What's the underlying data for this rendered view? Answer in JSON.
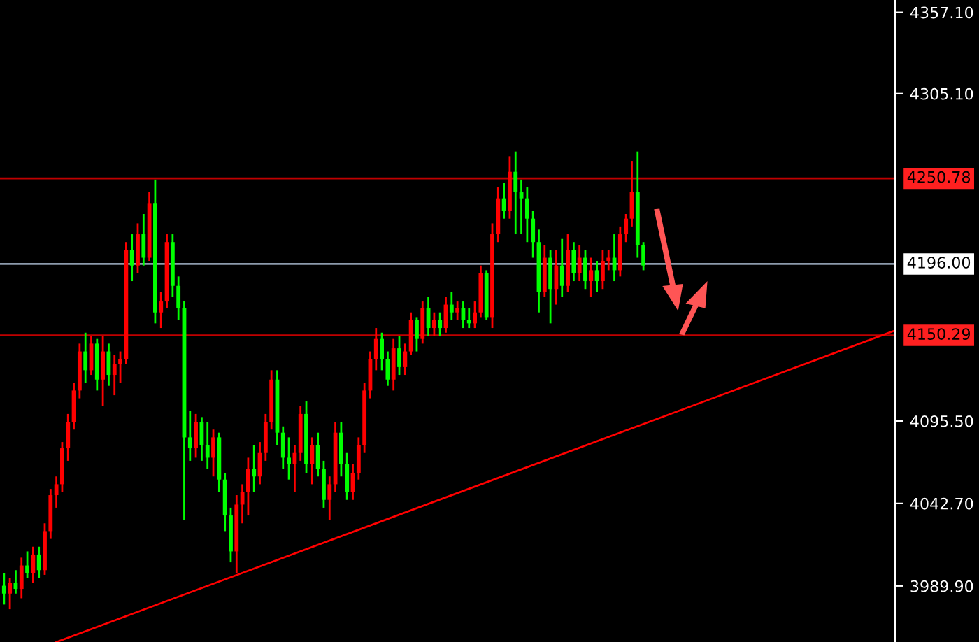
{
  "chart_data": {
    "type": "candlestick",
    "categories": [
      null,
      null,
      null,
      null,
      null,
      null,
      null,
      null,
      null,
      null,
      null,
      null,
      null,
      null,
      null,
      null,
      null,
      null,
      null,
      null,
      null,
      null,
      null,
      null,
      null,
      null,
      null,
      null,
      null,
      null,
      null,
      null,
      null,
      null,
      null,
      null,
      null,
      null,
      null,
      null,
      null,
      null,
      null,
      null,
      null,
      null,
      null,
      null,
      null,
      null,
      null,
      null,
      null,
      null,
      null,
      null,
      null,
      null,
      null,
      null,
      null,
      null,
      null,
      null,
      null,
      null,
      null,
      null,
      null,
      null,
      null,
      null,
      null,
      null,
      null,
      null,
      null,
      null,
      null,
      null,
      null,
      null,
      null,
      null,
      null,
      null,
      null,
      null,
      null,
      null,
      null,
      null,
      null,
      null,
      null,
      null,
      null,
      null,
      null,
      null,
      null,
      null,
      null,
      null,
      null,
      null,
      null,
      null,
      null,
      null,
      null,
      null,
      null,
      null,
      null,
      null,
      null,
      null,
      null,
      null,
      null,
      null,
      null,
      null,
      null,
      null,
      null,
      null,
      null,
      null,
      null,
      null,
      null,
      null,
      null,
      null,
      null,
      null,
      null,
      null,
      null,
      null,
      null,
      null,
      null,
      null,
      null,
      null,
      null,
      null,
      null,
      null,
      null,
      null
    ],
    "ohlc": [
      [
        3990,
        3998,
        3978,
        3985
      ],
      [
        3985,
        3995,
        3975,
        3992
      ],
      [
        3992,
        4000,
        3985,
        3988
      ],
      [
        3988,
        4008,
        3982,
        4003
      ],
      [
        4003,
        4012,
        3995,
        3998
      ],
      [
        3998,
        4015,
        3992,
        4010
      ],
      [
        4010,
        4015,
        3995,
        4000
      ],
      [
        4000,
        4030,
        3997,
        4025
      ],
      [
        4025,
        4052,
        4020,
        4048
      ],
      [
        4048,
        4060,
        4040,
        4055
      ],
      [
        4055,
        4082,
        4050,
        4078
      ],
      [
        4078,
        4100,
        4070,
        4095
      ],
      [
        4095,
        4120,
        4090,
        4115
      ],
      [
        4115,
        4145,
        4110,
        4140
      ],
      [
        4140,
        4152,
        4120,
        4128
      ],
      [
        4128,
        4150,
        4125,
        4145
      ],
      [
        4145,
        4148,
        4115,
        4122
      ],
      [
        4122,
        4150,
        4105,
        4140
      ],
      [
        4140,
        4145,
        4118,
        4125
      ],
      [
        4125,
        4138,
        4112,
        4132
      ],
      [
        4132,
        4140,
        4120,
        4135
      ],
      [
        4135,
        4210,
        4132,
        4205
      ],
      [
        4205,
        4215,
        4185,
        4195
      ],
      [
        4195,
        4222,
        4190,
        4215
      ],
      [
        4215,
        4228,
        4195,
        4200
      ],
      [
        4200,
        4242,
        4198,
        4235
      ],
      [
        4235,
        4250,
        4158,
        4165
      ],
      [
        4165,
        4178,
        4155,
        4172
      ],
      [
        4172,
        4215,
        4168,
        4210
      ],
      [
        4210,
        4215,
        4175,
        4182
      ],
      [
        4182,
        4188,
        4160,
        4168
      ],
      [
        4168,
        4172,
        4032,
        4085
      ],
      [
        4085,
        4102,
        4070,
        4078
      ],
      [
        4078,
        4100,
        4072,
        4095
      ],
      [
        4095,
        4098,
        4070,
        4080
      ],
      [
        4080,
        4095,
        4065,
        4072
      ],
      [
        4072,
        4090,
        4060,
        4085
      ],
      [
        4085,
        4088,
        4050,
        4058
      ],
      [
        4058,
        4062,
        4025,
        4035
      ],
      [
        4035,
        4040,
        4005,
        4012
      ],
      [
        4012,
        4048,
        3998,
        4042
      ],
      [
        4042,
        4055,
        4030,
        4050
      ],
      [
        4050,
        4072,
        4035,
        4065
      ],
      [
        4065,
        4080,
        4050,
        4060
      ],
      [
        4060,
        4082,
        4055,
        4075
      ],
      [
        4075,
        4100,
        4070,
        4095
      ],
      [
        4095,
        4128,
        4090,
        4122
      ],
      [
        4122,
        4128,
        4080,
        4088
      ],
      [
        4088,
        4092,
        4065,
        4072
      ],
      [
        4072,
        4085,
        4058,
        4068
      ],
      [
        4068,
        4080,
        4050,
        4075
      ],
      [
        4075,
        4105,
        4070,
        4100
      ],
      [
        4100,
        4108,
        4062,
        4068
      ],
      [
        4068,
        4085,
        4055,
        4080
      ],
      [
        4080,
        4088,
        4060,
        4065
      ],
      [
        4065,
        4070,
        4040,
        4045
      ],
      [
        4045,
        4060,
        4032,
        4055
      ],
      [
        4055,
        4095,
        4050,
        4088
      ],
      [
        4088,
        4095,
        4060,
        4068
      ],
      [
        4068,
        4075,
        4045,
        4050
      ],
      [
        4050,
        4068,
        4045,
        4062
      ],
      [
        4062,
        4085,
        4058,
        4080
      ],
      [
        4080,
        4120,
        4075,
        4115
      ],
      [
        4115,
        4140,
        4110,
        4135
      ],
      [
        4135,
        4155,
        4128,
        4148
      ],
      [
        4148,
        4152,
        4128,
        4135
      ],
      [
        4135,
        4140,
        4118,
        4122
      ],
      [
        4122,
        4148,
        4115,
        4142
      ],
      [
        4142,
        4150,
        4125,
        4130
      ],
      [
        4130,
        4145,
        4125,
        4140
      ],
      [
        4140,
        4165,
        4138,
        4160
      ],
      [
        4160,
        4162,
        4140,
        4148
      ],
      [
        4148,
        4172,
        4145,
        4168
      ],
      [
        4168,
        4175,
        4150,
        4155
      ],
      [
        4155,
        4165,
        4150,
        4160
      ],
      [
        4160,
        4165,
        4150,
        4155
      ],
      [
        4155,
        4175,
        4152,
        4170
      ],
      [
        4170,
        4178,
        4160,
        4165
      ],
      [
        4165,
        4172,
        4160,
        4168
      ],
      [
        4168,
        4172,
        4155,
        4160
      ],
      [
        4160,
        4168,
        4155,
        4158
      ],
      [
        4158,
        4172,
        4155,
        4165
      ],
      [
        4165,
        4195,
        4162,
        4190
      ],
      [
        4190,
        4192,
        4160,
        4162
      ],
      [
        4162,
        4222,
        4155,
        4215
      ],
      [
        4215,
        4245,
        4210,
        4238
      ],
      [
        4238,
        4248,
        4225,
        4230
      ],
      [
        4230,
        4265,
        4225,
        4255
      ],
      [
        4255,
        4268,
        4215,
        4242
      ],
      [
        4242,
        4250,
        4215,
        4238
      ],
      [
        4238,
        4245,
        4210,
        4225
      ],
      [
        4225,
        4230,
        4200,
        4210
      ],
      [
        4210,
        4218,
        4165,
        4178
      ],
      [
        4178,
        4208,
        4175,
        4200
      ],
      [
        4200,
        4205,
        4158,
        4180
      ],
      [
        4180,
        4205,
        4170,
        4195
      ],
      [
        4195,
        4212,
        4175,
        4182
      ],
      [
        4182,
        4215,
        4178,
        4205
      ],
      [
        4205,
        4210,
        4185,
        4190
      ],
      [
        4190,
        4208,
        4185,
        4200
      ],
      [
        4200,
        4205,
        4180,
        4185
      ],
      [
        4185,
        4200,
        4175,
        4192
      ],
      [
        4192,
        4198,
        4178,
        4185
      ],
      [
        4185,
        4205,
        4180,
        4198
      ],
      [
        4198,
        4205,
        4192,
        4200
      ],
      [
        4200,
        4215,
        4185,
        4192
      ],
      [
        4192,
        4220,
        4188,
        4215
      ],
      [
        4215,
        4228,
        4210,
        4225
      ],
      [
        4225,
        4262,
        4220,
        4242
      ],
      [
        4242,
        4268,
        4200,
        4208
      ],
      [
        4208,
        4210,
        4192,
        4195
      ],
      null,
      null,
      null,
      null,
      null,
      null,
      null,
      null,
      null,
      null,
      null,
      null,
      null,
      null,
      null,
      null,
      null,
      null,
      null,
      null,
      null,
      null,
      null,
      null,
      null,
      null,
      null,
      null,
      null,
      null,
      null,
      null,
      null,
      null,
      null,
      null,
      null,
      null,
      null,
      null,
      null,
      null,
      null
    ],
    "colors": [
      "#00ff00",
      "#ff0000",
      "#00ff00",
      "#ff0000",
      "#00ff00",
      "#ff0000",
      "#00ff00",
      "#ff0000",
      "#ff0000",
      "#ff0000",
      "#ff0000",
      "#ff0000",
      "#ff0000",
      "#ff0000",
      "#00ff00",
      "#ff0000",
      "#00ff00",
      "#ff0000",
      "#00ff00",
      "#ff0000",
      "#ff0000",
      "#ff0000",
      "#00ff00",
      "#ff0000",
      "#00ff00",
      "#ff0000",
      "#00ff00",
      "#ff0000",
      "#ff0000",
      "#00ff00",
      "#00ff00",
      "#00ff00",
      "#00ff00",
      "#ff0000",
      "#00ff00",
      "#00ff00",
      "#ff0000",
      "#00ff00",
      "#00ff00",
      "#00ff00",
      "#ff0000",
      "#ff0000",
      "#ff0000",
      "#00ff00",
      "#ff0000",
      "#ff0000",
      "#ff0000",
      "#00ff00",
      "#00ff00",
      "#00ff00",
      "#ff0000",
      "#ff0000",
      "#00ff00",
      "#ff0000",
      "#00ff00",
      "#00ff00",
      "#ff0000",
      "#ff0000",
      "#00ff00",
      "#00ff00",
      "#ff0000",
      "#ff0000",
      "#ff0000",
      "#ff0000",
      "#ff0000",
      "#00ff00",
      "#00ff00",
      "#ff0000",
      "#00ff00",
      "#ff0000",
      "#ff0000",
      "#00ff00",
      "#ff0000",
      "#00ff00",
      "#ff0000",
      "#00ff00",
      "#ff0000",
      "#00ff00",
      "#ff0000",
      "#00ff00",
      "#00ff00",
      "#ff0000",
      "#ff0000",
      "#00ff00",
      "#ff0000",
      "#ff0000",
      "#00ff00",
      "#ff0000",
      "#00ff00",
      "#00ff00",
      "#00ff00",
      "#00ff00",
      "#00ff00",
      "#ff0000",
      "#00ff00",
      "#ff0000",
      "#00ff00",
      "#ff0000",
      "#00ff00",
      "#ff0000",
      "#00ff00",
      "#ff0000",
      "#00ff00",
      "#ff0000",
      "#ff0000",
      "#00ff00",
      "#ff0000",
      "#ff0000",
      "#ff0000",
      "#00ff00",
      "#00ff00",
      null,
      null,
      null,
      null,
      null,
      null,
      null,
      null,
      null,
      null,
      null,
      null,
      null,
      null,
      null,
      null,
      null,
      null,
      null,
      null,
      null,
      null,
      null,
      null,
      null,
      null,
      null,
      null,
      null,
      null,
      null,
      null,
      null,
      null,
      null,
      null,
      null,
      null,
      null,
      null,
      null,
      null,
      null
    ],
    "series": [
      {
        "type": "line",
        "values": [
          null,
          null,
          null,
          null,
          null,
          null,
          null,
          null,
          null,
          3954,
          null,
          null,
          null,
          null,
          null,
          null,
          null,
          null,
          null,
          null,
          null,
          null,
          null,
          null,
          null,
          null,
          null,
          null,
          null,
          null,
          null,
          null,
          null,
          null,
          null,
          null,
          null,
          null,
          null,
          null,
          null,
          null,
          null,
          null,
          null,
          null,
          null,
          null,
          null,
          null,
          null,
          null,
          null,
          null,
          null,
          null,
          null,
          null,
          null,
          null,
          null,
          null,
          null,
          null,
          null,
          null,
          null,
          null,
          null,
          null,
          null,
          null,
          null,
          null,
          null,
          null,
          null,
          null,
          null,
          null,
          null,
          null,
          null,
          null,
          null,
          null,
          null,
          null,
          null,
          null,
          null,
          null,
          null,
          null,
          null,
          null,
          null,
          null,
          null,
          null,
          null,
          null,
          null,
          null,
          null,
          null,
          null,
          null,
          null,
          null,
          null,
          null,
          null,
          null,
          null,
          null,
          null,
          null,
          null,
          null,
          null,
          null,
          null,
          null,
          null,
          null,
          null,
          null,
          null,
          null,
          null,
          null,
          null,
          null,
          null,
          null,
          null,
          null,
          null,
          null,
          null,
          null,
          null,
          null,
          null,
          null,
          null,
          null,
          null,
          null,
          null,
          null,
          null,
          4153
        ],
        "color": "#ff0000"
      }
    ],
    "ylim": [
      3954,
      4365
    ],
    "yticks": [
      {
        "value": 3989.9,
        "label": "3989.90"
      },
      {
        "value": 4042.7,
        "label": "4042.70"
      },
      {
        "value": 4095.5,
        "label": "4095.50"
      },
      {
        "value": 4305.1,
        "label": "4305.10"
      },
      {
        "value": 4357.1,
        "label": "4357.10"
      }
    ],
    "ref_lines": [
      {
        "axis": "y",
        "value": 4250.78,
        "label": "4250.78",
        "color": "#c00000"
      },
      {
        "axis": "y",
        "value": 4196.0,
        "label": "4196.00",
        "color": "#8c9aab"
      },
      {
        "axis": "y",
        "value": 4150.29,
        "label": "4150.29",
        "color": "#c00000"
      }
    ],
    "grid": false,
    "legend": false
  }
}
